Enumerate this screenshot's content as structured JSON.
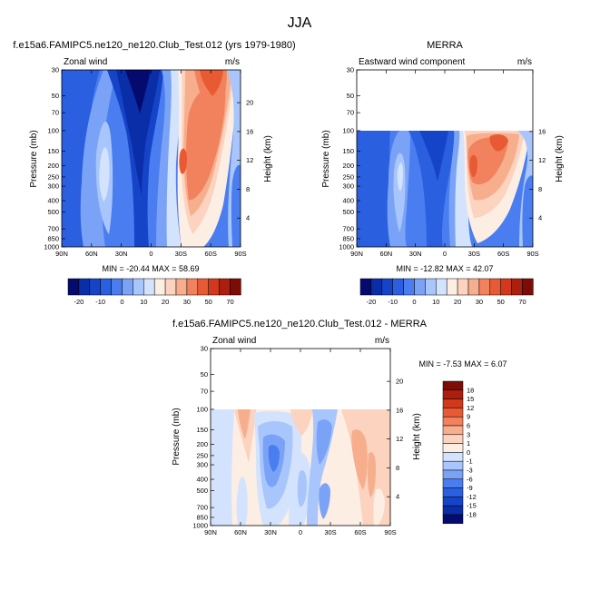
{
  "figure": {
    "main_title": "JJA",
    "panels": [
      {
        "title": "f.e15a6.FAMIPC5.ne120_ne120.Club_Test.012 (yrs 1979-1980)",
        "variable": "Zonal wind",
        "units": "m/s",
        "stats": "MIN = -20.44   MAX = 58.69"
      },
      {
        "title": "MERRA",
        "variable": "Eastward wind component",
        "units": "m/s",
        "stats": "MIN = -12.82   MAX = 42.07"
      },
      {
        "title": "f.e15a6.FAMIPC5.ne120_ne120.Club_Test.012 - MERRA",
        "variable": "Zonal wind",
        "units": "m/s",
        "stats": "MIN = -7.53   MAX =   6.07"
      }
    ]
  },
  "chart_data": [
    {
      "type": "heatmap",
      "title": "f.e15a6.FAMIPC5.ne120_ne120.Club_Test.012 (yrs 1979-1980)",
      "subtitle": "Zonal wind",
      "units": "m/s",
      "xlabel": "",
      "ylabel": "Pressure (mb)",
      "y2label": "Height (km)",
      "x_ticks": [
        "90N",
        "60N",
        "30N",
        "0",
        "30S",
        "60S",
        "90S"
      ],
      "y_ticks": [
        30,
        50,
        70,
        100,
        150,
        200,
        250,
        300,
        400,
        500,
        700,
        850,
        1000
      ],
      "y_ticks_right": [
        4,
        8,
        12,
        16,
        20
      ],
      "ylim": [
        1000,
        30
      ],
      "min": -20.44,
      "max": 58.69,
      "colorbar_levels": [
        -25,
        -20,
        -15,
        -10,
        -5,
        0,
        5,
        10,
        15,
        20,
        25,
        30,
        40,
        50,
        60,
        70
      ],
      "colorbar_labels": [
        "-20",
        "-10",
        "0",
        "10",
        "20",
        "30",
        "50",
        "70"
      ]
    },
    {
      "type": "heatmap",
      "title": "MERRA",
      "subtitle": "Eastward wind component",
      "units": "m/s",
      "xlabel": "",
      "ylabel": "Pressure (mb)",
      "y2label": "Height (km)",
      "x_ticks": [
        "90N",
        "60N",
        "30N",
        "0",
        "30S",
        "60S",
        "90S"
      ],
      "y_ticks": [
        30,
        50,
        70,
        100,
        150,
        200,
        250,
        300,
        400,
        500,
        700,
        850,
        1000
      ],
      "y_ticks_right": [
        4,
        8,
        12,
        16
      ],
      "ylim": [
        1000,
        30
      ],
      "data_top_mb": 100,
      "min": -12.82,
      "max": 42.07,
      "colorbar_levels": [
        -25,
        -20,
        -15,
        -10,
        -5,
        0,
        5,
        10,
        15,
        20,
        25,
        30,
        40,
        50,
        60,
        70
      ],
      "colorbar_labels": [
        "-20",
        "-10",
        "0",
        "10",
        "20",
        "30",
        "50",
        "70"
      ]
    },
    {
      "type": "heatmap",
      "title": "f.e15a6.FAMIPC5.ne120_ne120.Club_Test.012 - MERRA",
      "subtitle": "Zonal wind",
      "units": "m/s",
      "xlabel": "",
      "ylabel": "Pressure (mb)",
      "y2label": "Height (km)",
      "x_ticks": [
        "90N",
        "60N",
        "30N",
        "0",
        "30S",
        "60S",
        "90S"
      ],
      "y_ticks": [
        30,
        50,
        70,
        100,
        150,
        200,
        250,
        300,
        400,
        500,
        700,
        850,
        1000
      ],
      "y_ticks_right": [
        4,
        8,
        12,
        16,
        20
      ],
      "ylim": [
        1000,
        30
      ],
      "data_top_mb": 100,
      "min": -7.53,
      "max": 6.07,
      "colorbar_labels": [
        "18",
        "15",
        "12",
        "9",
        "6",
        "3",
        "1",
        "0",
        "-1",
        "-3",
        "-6",
        "-9",
        "-12",
        "-15",
        "-18"
      ]
    }
  ],
  "palettes": {
    "wind": [
      "#050a6e",
      "#0a2ea8",
      "#1544c8",
      "#2a5fe0",
      "#4a7ef0",
      "#7aa3f7",
      "#a8c6fb",
      "#d3e3fd",
      "#fdeee4",
      "#fbd3bf",
      "#f7ae8d",
      "#f1825d",
      "#e85a33",
      "#d2381b",
      "#ac1f0f",
      "#7c0c06"
    ],
    "diff": [
      "#7c0c06",
      "#ac1f0f",
      "#d2381b",
      "#e85a33",
      "#f1825d",
      "#f7ae8d",
      "#fbd3bf",
      "#fdeee4",
      "#d3e3fd",
      "#a8c6fb",
      "#7aa3f7",
      "#4a7ef0",
      "#2a5fe0",
      "#1544c8",
      "#0a2ea8",
      "#050a6e"
    ]
  }
}
